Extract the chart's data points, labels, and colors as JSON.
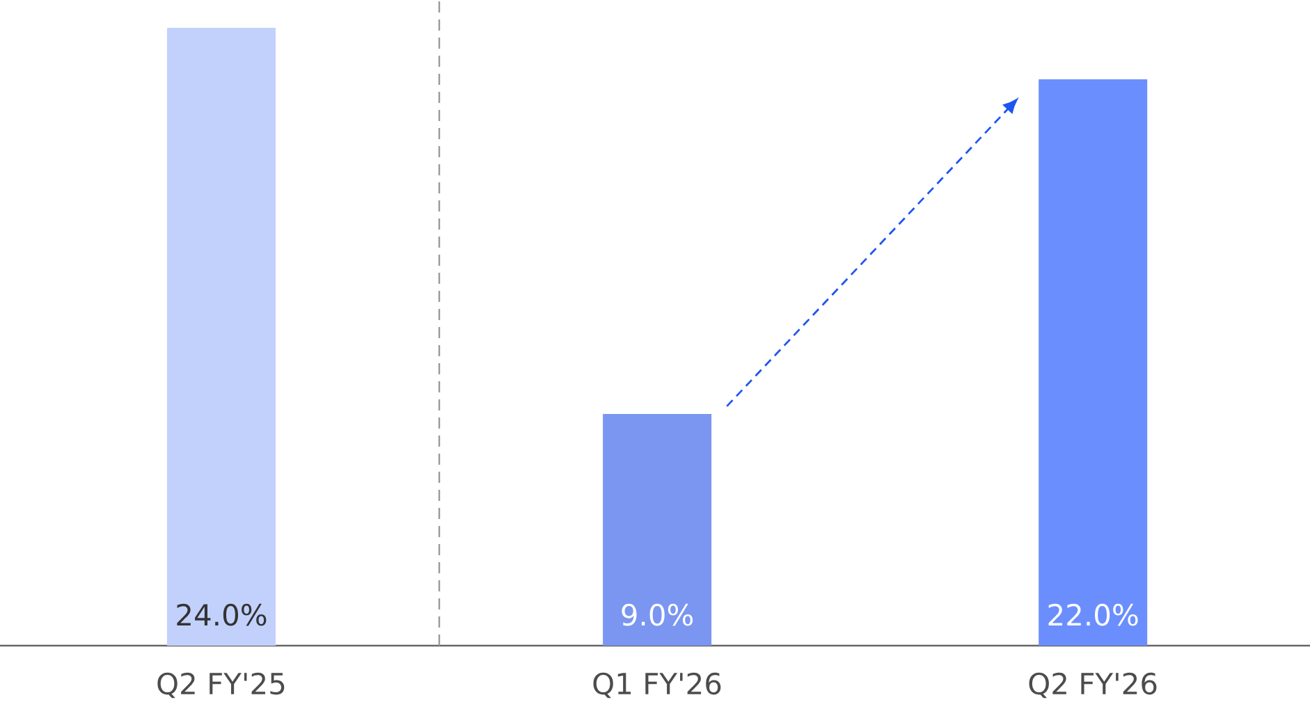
{
  "chart_data": {
    "type": "bar",
    "categories": [
      "Q2 FY'25",
      "Q1 FY'26",
      "Q2 FY'26"
    ],
    "values": [
      24.0,
      9.0,
      22.0
    ],
    "colors": [
      "#c2d1fc",
      "#7a96f0",
      "#6b8efe"
    ],
    "value_labels": [
      "24.0%",
      "9.0%",
      "22.0%"
    ]
  }
}
